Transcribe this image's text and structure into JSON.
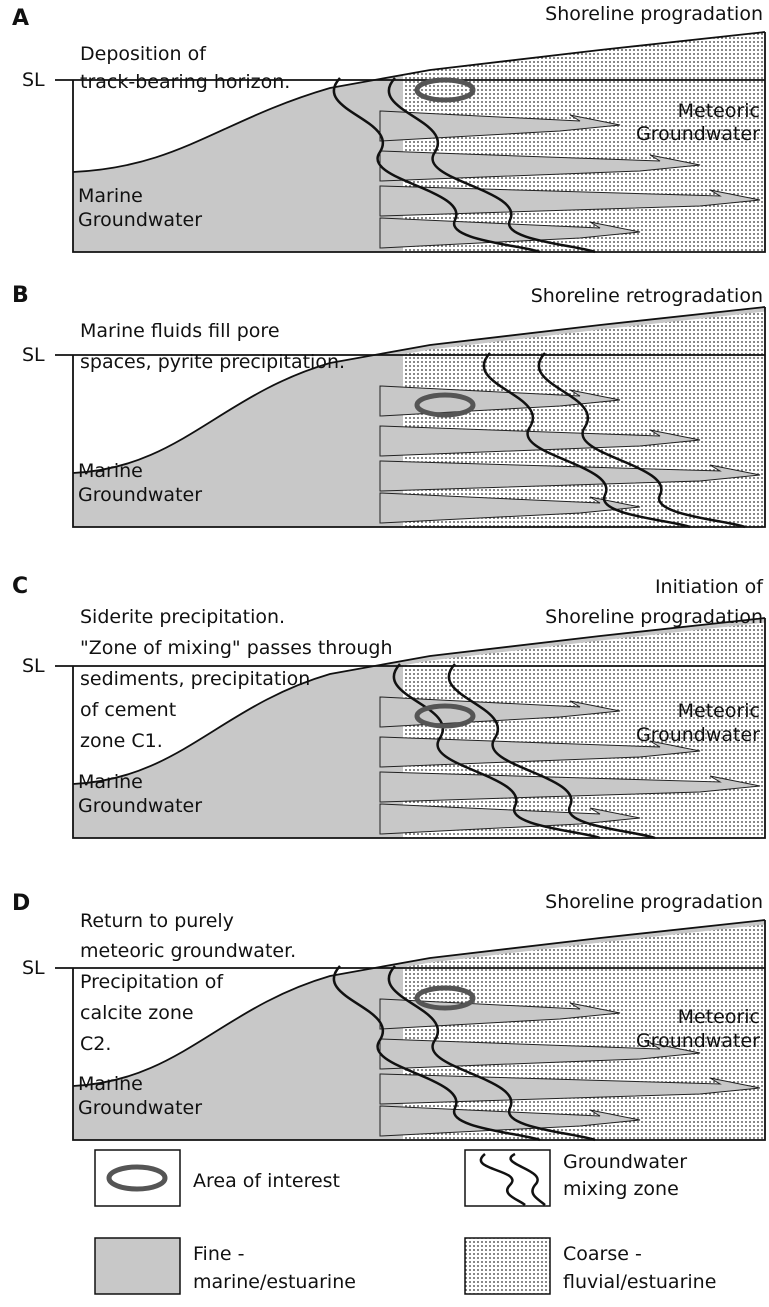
{
  "panels": [
    {
      "letter": "A",
      "sea_level": "SL",
      "title": [
        "Shoreline progradation"
      ],
      "caption": [
        "Deposition of",
        "track-bearing horizon."
      ],
      "marine": [
        "Marine",
        "Groundwater"
      ],
      "meteoric": [
        "Meteoric",
        "Groundwater"
      ]
    },
    {
      "letter": "B",
      "sea_level": "SL",
      "title": [
        "Shoreline retrogradation"
      ],
      "caption": [
        "Marine fluids fill pore",
        "spaces, pyrite precipitation."
      ],
      "marine": [
        "Marine",
        "Groundwater"
      ]
    },
    {
      "letter": "C",
      "sea_level": "SL",
      "title": [
        "Initiation of",
        "Shoreline progradation"
      ],
      "caption": [
        "Siderite precipitation.",
        "\"Zone of mixing\" passes through",
        "sediments, precipitation",
        "of cement",
        "zone C1."
      ],
      "marine": [
        "Marine",
        "Groundwater"
      ],
      "meteoric": [
        "Meteoric",
        "Groundwater"
      ]
    },
    {
      "letter": "D",
      "sea_level": "SL",
      "title": [
        "Shoreline progradation"
      ],
      "caption": [
        "Return to purely",
        "meteoric groundwater.",
        "Precipitation of",
        "calcite zone",
        "C2."
      ],
      "marine": [
        "Marine",
        "Groundwater"
      ],
      "meteoric": [
        "Meteoric",
        "Groundwater"
      ]
    }
  ],
  "legend": [
    {
      "label": [
        "Area of interest"
      ]
    },
    {
      "label": [
        "Groundwater",
        "mixing zone"
      ]
    },
    {
      "label": [
        "Fine -",
        "marine/estuarine"
      ]
    },
    {
      "label": [
        "Coarse -",
        "fluvial/estuarine"
      ]
    }
  ]
}
